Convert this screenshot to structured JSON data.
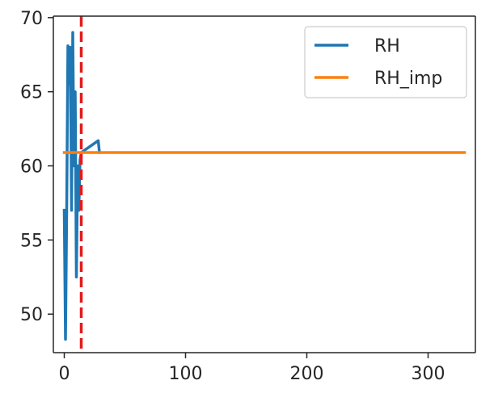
{
  "chart_data": {
    "type": "line",
    "title": "",
    "xlabel": "",
    "ylabel": "",
    "xlim": [
      -9,
      339
    ],
    "ylim": [
      47.4,
      70.1
    ],
    "x_ticks": [
      0,
      100,
      200,
      300
    ],
    "y_ticks": [
      50,
      55,
      60,
      65,
      70
    ],
    "grid": false,
    "legend_position": "top-right",
    "series": [
      {
        "name": "RH",
        "color": "#1f77b4",
        "x": [
          0,
          1,
          2,
          3,
          4,
          5,
          6,
          7,
          8,
          9,
          10,
          11,
          12,
          13,
          14,
          28,
          29
        ],
        "y": [
          57.0,
          48.3,
          57.0,
          68.1,
          65.5,
          68.0,
          57.0,
          69.0,
          60.0,
          65.0,
          52.5,
          60.0,
          57.0,
          60.4,
          60.9,
          61.7,
          60.9
        ]
      },
      {
        "name": "RH_imp",
        "color": "#ff7f0e",
        "x": [
          0,
          330
        ],
        "y": [
          60.9,
          60.9
        ]
      }
    ],
    "vertical_line": {
      "x": 14,
      "color": "#e41a1c",
      "style": "dashed"
    },
    "legend": [
      "RH",
      "RH_imp"
    ]
  }
}
